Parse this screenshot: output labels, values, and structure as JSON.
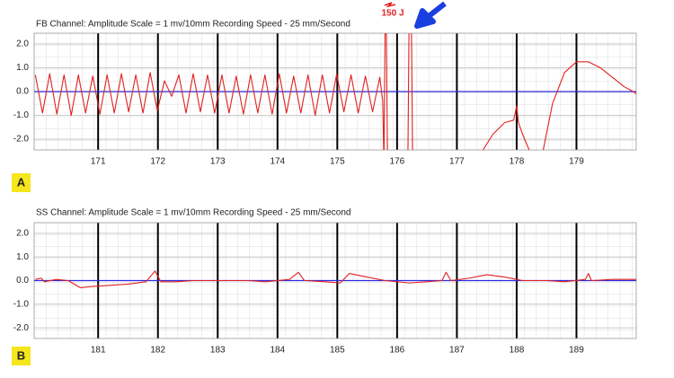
{
  "chart_data": [
    {
      "type": "line",
      "title": "FB Channel: Amplitude Scale = 1 mv/10mm Recording Speed - 25 mm/Second",
      "panel_label": "A",
      "annotation": "150 J",
      "xlim": [
        169.93,
        180.0
      ],
      "xticks": [
        171,
        172,
        173,
        174,
        175,
        176,
        177,
        178,
        179
      ],
      "ylim": [
        -2.45,
        2.45
      ],
      "yticks": [
        {
          "value": 2,
          "label": "2.0"
        },
        {
          "value": 1,
          "label": "1.0"
        },
        {
          "value": 0,
          "label": "0.0"
        },
        {
          "value": -1,
          "label": "-1.0"
        },
        {
          "value": -2,
          "label": "-2.0"
        }
      ],
      "baseline": 0,
      "baseline_color": "#2a2ae0",
      "color": "#e02020",
      "grid": true,
      "x": [
        169.95,
        170.07,
        170.19,
        170.31,
        170.43,
        170.55,
        170.67,
        170.79,
        170.91,
        171.03,
        171.15,
        171.27,
        171.39,
        171.51,
        171.63,
        171.75,
        171.87,
        171.99,
        172.11,
        172.23,
        172.35,
        172.47,
        172.59,
        172.71,
        172.83,
        172.95,
        173.07,
        173.19,
        173.31,
        173.43,
        173.55,
        173.67,
        173.79,
        173.91,
        174.03,
        174.15,
        174.27,
        174.39,
        174.51,
        174.63,
        174.75,
        174.87,
        174.99,
        175.11,
        175.23,
        175.35,
        175.47,
        175.59,
        175.71,
        175.76,
        175.78,
        175.8,
        175.82,
        175.84,
        176.0,
        176.18,
        176.2,
        176.24,
        176.26,
        176.8,
        177.4,
        177.6,
        177.8,
        177.95,
        178.0,
        178.03,
        178.1,
        178.3,
        178.35,
        178.4,
        178.6,
        178.8,
        179.0,
        179.2,
        179.4,
        179.6,
        179.8,
        179.95,
        180.0
      ],
      "values": [
        0.7,
        -0.9,
        0.75,
        -0.95,
        0.7,
        -1.0,
        0.7,
        -0.9,
        0.65,
        -0.95,
        0.7,
        -0.9,
        0.75,
        -0.85,
        0.7,
        -0.9,
        0.8,
        -0.8,
        0.45,
        -0.2,
        0.7,
        -0.9,
        0.75,
        -0.85,
        0.7,
        -0.9,
        0.7,
        -0.9,
        0.65,
        -0.95,
        0.7,
        -0.9,
        0.7,
        -0.95,
        0.75,
        -0.9,
        0.65,
        -0.9,
        0.7,
        -1.0,
        0.7,
        -0.9,
        0.75,
        -0.85,
        0.7,
        -0.9,
        0.65,
        -0.85,
        0.6,
        -0.4,
        -3,
        2.8,
        2.8,
        -3,
        null,
        -3,
        2.8,
        2.8,
        -3,
        null,
        -2.6,
        -1.8,
        -1.3,
        -1.2,
        -0.6,
        -1.3,
        -1.8,
        -3,
        null,
        -3,
        -0.5,
        0.8,
        1.25,
        1.25,
        1.0,
        0.6,
        0.2,
        0.0,
        -0.1
      ]
    },
    {
      "type": "line",
      "title": "SS Channel: Amplitude Scale = 1 mv/10mm Recording Speed - 25 mm/Second",
      "panel_label": "B",
      "xlim": [
        179.93,
        190.0
      ],
      "xticks": [
        181,
        182,
        183,
        184,
        185,
        186,
        187,
        188,
        189
      ],
      "ylim": [
        -2.45,
        2.45
      ],
      "yticks": [
        {
          "value": 2,
          "label": "2.0"
        },
        {
          "value": 1,
          "label": "1.0"
        },
        {
          "value": 0,
          "label": "0.0"
        },
        {
          "value": -1,
          "label": "-1.0"
        },
        {
          "value": -2,
          "label": "-2.0"
        }
      ],
      "baseline": 0,
      "baseline_color": "#2a2ae0",
      "color": "#e02020",
      "grid": true,
      "x": [
        179.95,
        180.05,
        180.1,
        180.3,
        180.5,
        180.7,
        180.9,
        181.2,
        181.5,
        181.8,
        181.95,
        182.05,
        182.3,
        182.6,
        182.9,
        183.2,
        183.5,
        183.8,
        184.2,
        184.35,
        184.45,
        184.8,
        185.05,
        185.2,
        185.5,
        185.8,
        186.2,
        186.5,
        186.75,
        186.82,
        186.9,
        187.2,
        187.5,
        187.8,
        188.1,
        188.5,
        188.8,
        189.15,
        189.2,
        189.25,
        189.6,
        190.0
      ],
      "values": [
        0.05,
        0.1,
        -0.05,
        0.05,
        0.0,
        -0.3,
        -0.25,
        -0.2,
        -0.15,
        -0.05,
        0.4,
        -0.05,
        -0.05,
        0.0,
        0.0,
        0.0,
        0.0,
        -0.05,
        0.05,
        0.35,
        0.0,
        -0.05,
        -0.1,
        0.3,
        0.15,
        0.0,
        -0.1,
        -0.05,
        0.0,
        0.35,
        0.0,
        0.1,
        0.25,
        0.15,
        0.0,
        0.0,
        -0.05,
        0.05,
        0.3,
        0.0,
        0.05,
        0.05
      ]
    }
  ]
}
